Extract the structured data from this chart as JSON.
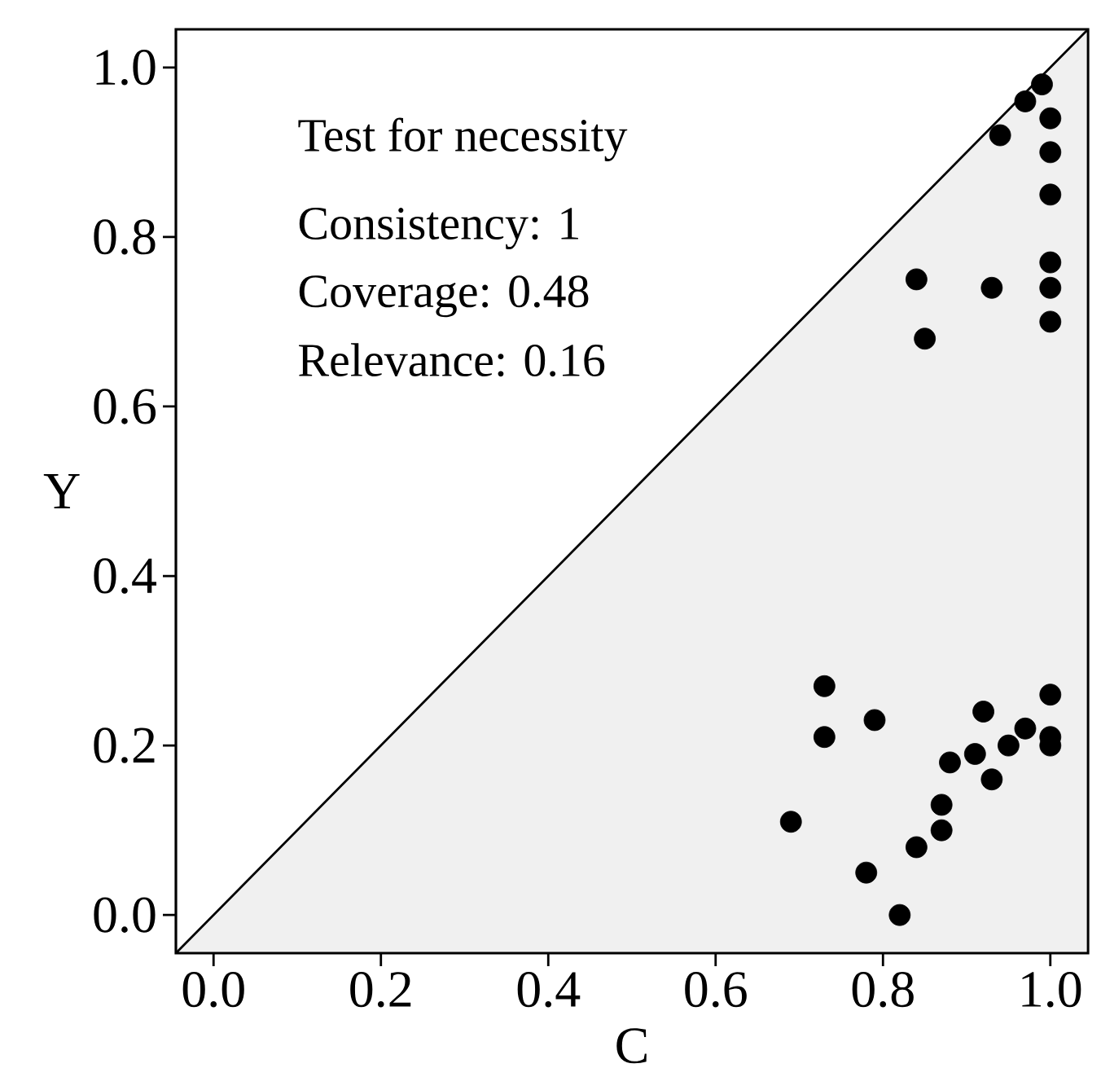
{
  "chart_data": {
    "type": "scatter",
    "xlabel": "C",
    "ylabel": "Y",
    "xlim": [
      -0.045,
      1.045
    ],
    "ylim": [
      -0.045,
      1.045
    ],
    "xticks": [
      {
        "value": 0,
        "label": "0.0"
      },
      0.2,
      0.4,
      0.6,
      0.8,
      {
        "value": 1,
        "label": "1.0"
      }
    ],
    "yticks": [
      {
        "value": 0,
        "label": "0.0"
      },
      0.2,
      0.4,
      0.6,
      0.8,
      {
        "value": 1,
        "label": "1.0"
      }
    ],
    "annotations": [
      "Test for necessity",
      "Consistency: 1",
      "Coverage: 0.48",
      "Relevance: 0.16"
    ],
    "series": [
      {
        "type": "area",
        "color": "#f0f0f0",
        "x": [
          -0.045,
          1.045
        ],
        "values": [
          -0.045,
          1.045
        ]
      },
      {
        "marker": "circle",
        "color": "#000000",
        "x": [
          0.99,
          0.97,
          0.94,
          1.0,
          1.0,
          1.0,
          1.0,
          1.0,
          1.0,
          0.84,
          0.93,
          0.85,
          0.73,
          0.73,
          0.79,
          0.69,
          0.78,
          0.82,
          0.84,
          0.87,
          0.87,
          0.88,
          0.91,
          0.92,
          0.93,
          0.95,
          0.97,
          1.0,
          1.0,
          1.0
        ],
        "values": [
          0.98,
          0.96,
          0.92,
          0.94,
          0.9,
          0.85,
          0.77,
          0.74,
          0.7,
          0.75,
          0.74,
          0.68,
          0.27,
          0.21,
          0.23,
          0.11,
          0.05,
          0.0,
          0.08,
          0.1,
          0.13,
          0.18,
          0.19,
          0.24,
          0.16,
          0.2,
          0.22,
          0.26,
          0.21,
          0.2
        ]
      }
    ]
  }
}
